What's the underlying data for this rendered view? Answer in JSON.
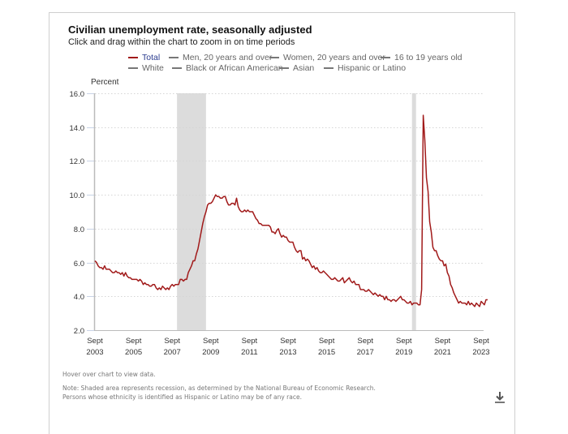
{
  "header": {
    "title": "Civilian unemployment rate, seasonally adjusted",
    "subtitle": "Click and drag within the chart to zoom in on time periods"
  },
  "legend": [
    {
      "label": "Total",
      "active": true
    },
    {
      "label": "Men, 20 years and over",
      "active": false
    },
    {
      "label": "Women, 20 years and over",
      "active": false
    },
    {
      "label": "16 to 19 years old",
      "active": false
    },
    {
      "label": "White",
      "active": false
    },
    {
      "label": "Black or African American",
      "active": false
    },
    {
      "label": "Asian",
      "active": false
    },
    {
      "label": "Hispanic or Latino",
      "active": false
    }
  ],
  "notes": {
    "hover": "Hover over chart to view data.",
    "note1": "Note: Shaded area represents recession, as determined by the National Bureau of Economic Research.",
    "note2": "Persons whose ethnicity is identified as Hispanic or Latino may be of any race."
  },
  "colors": {
    "series": "#a11a1a",
    "recession": "#dcdcdc",
    "grid": "#d5d5d5",
    "axis": "#bbbbbb",
    "legend_active_text": "#2b3c8f"
  },
  "icons": {
    "download": "download-icon"
  },
  "chart_data": {
    "type": "line",
    "title": "Civilian unemployment rate, seasonally adjusted",
    "ylabel": "Percent",
    "xlabel": "",
    "ylim": [
      2.0,
      16.0
    ],
    "yticks": [
      "16.0",
      "14.0",
      "12.0",
      "10.0",
      "8.0",
      "6.0",
      "4.0",
      "2.0"
    ],
    "xticks": [
      {
        "top": "Sept",
        "bottom": "2003"
      },
      {
        "top": "Sept",
        "bottom": "2005"
      },
      {
        "top": "Sept",
        "bottom": "2007"
      },
      {
        "top": "Sept",
        "bottom": "2009"
      },
      {
        "top": "Sept",
        "bottom": "2011"
      },
      {
        "top": "Sept",
        "bottom": "2013"
      },
      {
        "top": "Sept",
        "bottom": "2015"
      },
      {
        "top": "Sept",
        "bottom": "2017"
      },
      {
        "top": "Sept",
        "bottom": "2019"
      },
      {
        "top": "Sept",
        "bottom": "2021"
      },
      {
        "top": "Sept",
        "bottom": "2023"
      }
    ],
    "x_start": "Sept 2003",
    "x_end": "Sept 2023",
    "grid": true,
    "legend_position": "top",
    "recessions": [
      {
        "start": "Dec 2007",
        "end": "Jun 2009",
        "start_month_index": 51,
        "end_month_index": 69
      },
      {
        "start": "Feb 2020",
        "end": "Apr 2020",
        "start_month_index": 197,
        "end_month_index": 199
      }
    ],
    "series": [
      {
        "name": "Total",
        "frequency": "monthly",
        "start": "Sept 2003",
        "values": [
          6.1,
          6.0,
          5.8,
          5.7,
          5.7,
          5.6,
          5.8,
          5.6,
          5.6,
          5.6,
          5.5,
          5.4,
          5.4,
          5.5,
          5.4,
          5.4,
          5.3,
          5.4,
          5.2,
          5.4,
          5.2,
          5.1,
          5.1,
          5.0,
          5.0,
          5.0,
          5.0,
          4.9,
          5.0,
          4.9,
          4.7,
          4.8,
          4.7,
          4.7,
          4.6,
          4.6,
          4.7,
          4.7,
          4.5,
          4.4,
          4.5,
          4.4,
          4.6,
          4.5,
          4.4,
          4.5,
          4.4,
          4.6,
          4.7,
          4.6,
          4.7,
          4.7,
          4.7,
          5.0,
          5.0,
          4.9,
          5.0,
          5.0,
          5.4,
          5.6,
          5.8,
          6.1,
          6.1,
          6.5,
          6.8,
          7.3,
          7.8,
          8.3,
          8.7,
          9.0,
          9.4,
          9.5,
          9.5,
          9.6,
          9.8,
          10.0,
          9.9,
          9.9,
          9.8,
          9.8,
          9.9,
          9.9,
          9.6,
          9.4,
          9.4,
          9.5,
          9.5,
          9.4,
          9.8,
          9.3,
          9.1,
          9.0,
          9.0,
          9.1,
          9.0,
          9.1,
          9.0,
          9.0,
          9.0,
          8.8,
          8.6,
          8.5,
          8.3,
          8.3,
          8.2,
          8.2,
          8.2,
          8.2,
          8.2,
          8.1,
          7.8,
          7.8,
          7.7,
          7.9,
          8.0,
          7.7,
          7.5,
          7.6,
          7.5,
          7.5,
          7.3,
          7.2,
          7.2,
          7.2,
          6.9,
          6.7,
          6.6,
          6.7,
          6.7,
          6.2,
          6.3,
          6.1,
          6.2,
          6.1,
          5.9,
          5.7,
          5.8,
          5.6,
          5.7,
          5.5,
          5.4,
          5.4,
          5.5,
          5.4,
          5.3,
          5.2,
          5.1,
          5.0,
          5.0,
          5.1,
          5.0,
          4.9,
          4.9,
          5.0,
          5.1,
          4.8,
          4.9,
          5.0,
          5.1,
          4.9,
          4.8,
          4.9,
          4.7,
          4.7,
          4.7,
          4.4,
          4.4,
          4.4,
          4.3,
          4.3,
          4.4,
          4.3,
          4.2,
          4.1,
          4.2,
          4.1,
          4.0,
          4.1,
          4.0,
          4.0,
          3.8,
          4.0,
          3.8,
          3.8,
          3.7,
          3.8,
          3.8,
          3.7,
          3.8,
          3.9,
          4.0,
          3.8,
          3.8,
          3.7,
          3.6,
          3.6,
          3.7,
          3.5,
          3.6,
          3.6,
          3.6,
          3.5,
          3.5,
          4.4,
          14.7,
          13.2,
          11.0,
          10.2,
          8.4,
          7.8,
          6.9,
          6.7,
          6.7,
          6.4,
          6.2,
          6.1,
          6.1,
          5.8,
          5.9,
          5.4,
          5.2,
          4.7,
          4.5,
          4.2,
          4.0,
          3.8,
          3.6,
          3.7,
          3.6,
          3.6,
          3.6,
          3.5,
          3.7,
          3.5,
          3.6,
          3.5,
          3.4,
          3.6,
          3.5,
          3.4,
          3.7,
          3.6,
          3.5,
          3.8,
          3.8
        ]
      }
    ]
  }
}
